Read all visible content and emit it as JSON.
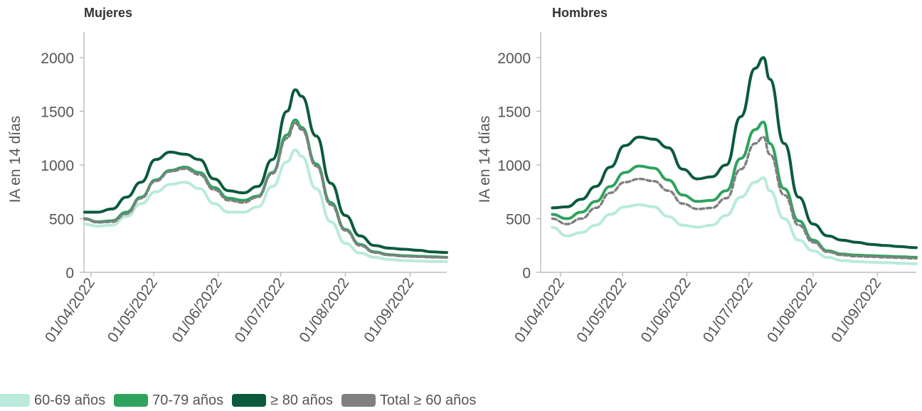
{
  "chart_data": [
    {
      "type": "line",
      "title": "Mujeres",
      "ylabel": "IA en 14 días",
      "ylim": [
        0,
        2000
      ],
      "yticks": [
        0,
        500,
        1000,
        1500,
        2000
      ],
      "xticks": [
        "01/04/2022",
        "01/05/2022",
        "01/06/2022",
        "01/07/2022",
        "01/08/2022",
        "01/09/2022"
      ],
      "x": [
        "28/03",
        "04/04",
        "11/04",
        "18/04",
        "25/04",
        "02/05",
        "09/05",
        "16/05",
        "23/05",
        "30/05",
        "06/06",
        "13/06",
        "20/06",
        "27/06",
        "04/07",
        "08/07",
        "11/07",
        "18/07",
        "25/07",
        "01/08",
        "08/08",
        "15/08",
        "22/08",
        "29/08",
        "05/09",
        "12/09",
        "19/09",
        "26/09"
      ],
      "series": [
        {
          "name": "60-69 años",
          "color": "#b9eadb",
          "dash": false,
          "values": [
            450,
            430,
            440,
            520,
            640,
            750,
            820,
            840,
            780,
            640,
            560,
            560,
            610,
            800,
            1030,
            1140,
            1080,
            780,
            470,
            270,
            180,
            140,
            120,
            110,
            105,
            100,
            100,
            100
          ]
        },
        {
          "name": "70-79 años",
          "color": "#2fa35e",
          "dash": false,
          "values": [
            500,
            470,
            480,
            560,
            700,
            860,
            950,
            980,
            930,
            790,
            690,
            670,
            710,
            930,
            1280,
            1420,
            1350,
            1010,
            650,
            400,
            260,
            190,
            165,
            155,
            150,
            145,
            140,
            140
          ]
        },
        {
          "name": "≥ 80 años",
          "color": "#0b5a3c",
          "dash": false,
          "values": [
            560,
            560,
            590,
            700,
            840,
            1050,
            1120,
            1100,
            1050,
            870,
            760,
            740,
            800,
            1050,
            1500,
            1700,
            1640,
            1270,
            830,
            530,
            340,
            250,
            225,
            215,
            205,
            190,
            185,
            185
          ]
        },
        {
          "name": "Total ≥ 60 años",
          "color": "#808080",
          "dash": true,
          "values": [
            495,
            465,
            470,
            545,
            690,
            850,
            940,
            965,
            910,
            770,
            670,
            650,
            700,
            920,
            1250,
            1390,
            1330,
            990,
            630,
            390,
            250,
            185,
            160,
            150,
            145,
            140,
            138,
            138
          ]
        }
      ]
    },
    {
      "type": "line",
      "title": "Hombres",
      "ylabel": "IA en 14 días",
      "ylim": [
        0,
        2000
      ],
      "yticks": [
        0,
        500,
        1000,
        1500,
        2000
      ],
      "xticks": [
        "01/04/2022",
        "01/05/2022",
        "01/06/2022",
        "01/07/2022",
        "01/08/2022",
        "01/09/2022"
      ],
      "x": [
        "28/03",
        "04/04",
        "11/04",
        "18/04",
        "25/04",
        "02/05",
        "09/05",
        "16/05",
        "23/05",
        "30/05",
        "06/06",
        "13/06",
        "20/06",
        "27/06",
        "04/07",
        "08/07",
        "11/07",
        "18/07",
        "25/07",
        "01/08",
        "08/08",
        "15/08",
        "22/08",
        "29/08",
        "05/09",
        "12/09",
        "19/09",
        "26/09"
      ],
      "series": [
        {
          "name": "60-69 años",
          "color": "#b9eadb",
          "dash": false,
          "values": [
            420,
            340,
            370,
            440,
            540,
            610,
            630,
            610,
            520,
            440,
            420,
            440,
            530,
            700,
            840,
            880,
            760,
            500,
            300,
            200,
            140,
            110,
            100,
            95,
            90,
            85,
            80,
            80
          ]
        },
        {
          "name": "70-79 años",
          "color": "#2fa35e",
          "dash": false,
          "values": [
            540,
            500,
            560,
            660,
            800,
            930,
            990,
            970,
            860,
            720,
            660,
            670,
            760,
            1060,
            1330,
            1400,
            1200,
            780,
            480,
            300,
            200,
            170,
            160,
            155,
            150,
            145,
            140,
            140
          ]
        },
        {
          "name": "≥ 80 años",
          "color": "#0b5a3c",
          "dash": false,
          "values": [
            600,
            610,
            680,
            800,
            980,
            1180,
            1260,
            1240,
            1160,
            960,
            870,
            890,
            1000,
            1450,
            1900,
            2000,
            1800,
            1200,
            700,
            450,
            340,
            300,
            280,
            260,
            250,
            240,
            230,
            230
          ]
        },
        {
          "name": "Total ≥ 60 años",
          "color": "#808080",
          "dash": true,
          "values": [
            500,
            450,
            500,
            600,
            740,
            840,
            870,
            850,
            760,
            640,
            590,
            600,
            690,
            960,
            1200,
            1260,
            1100,
            720,
            440,
            280,
            190,
            160,
            150,
            145,
            140,
            135,
            130,
            130
          ]
        }
      ]
    }
  ],
  "legend": [
    {
      "label": "60-69 años",
      "color": "#b9eadb"
    },
    {
      "label": "70-79 años",
      "color": "#2fa35e"
    },
    {
      "label": "≥ 80 años",
      "color": "#0b5a3c"
    },
    {
      "label": "Total ≥ 60 años",
      "color": "#808080"
    }
  ]
}
